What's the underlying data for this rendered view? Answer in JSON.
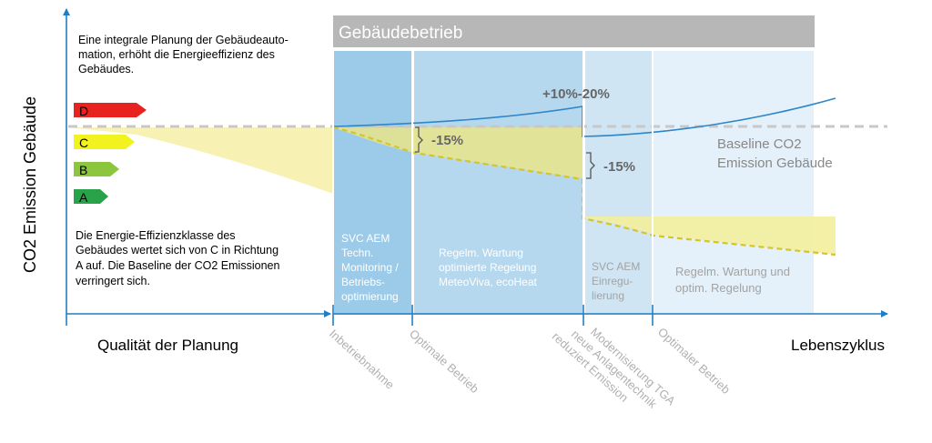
{
  "y_axis_label": "CO2 Emission Gebäude",
  "x_axis_left_label": "Qualität der Planung",
  "x_axis_right_label": "Lebenszyklus",
  "header_bar": "Gebäudebetrieb",
  "intro_text": [
    "Eine integrale Planung der Gebäudeauto-",
    "mation, erhöht die Energieeffizienz des",
    "Gebäudes."
  ],
  "class_text": [
    "Die Energie-Effizienzklasse des",
    "Gebäudes wertet sich von C in Richtung",
    "A auf. Die Baseline der CO2 Emissionen",
    "verringert sich."
  ],
  "energy_classes": [
    {
      "label": "D",
      "color": "#e8231f"
    },
    {
      "label": "C",
      "color": "#f2f21e"
    },
    {
      "label": "B",
      "color": "#8cc63f"
    },
    {
      "label": "A",
      "color": "#29a34a"
    }
  ],
  "phases": [
    {
      "lines": [
        "SVC AEM",
        "Techn.",
        "Monitoring /",
        "Betriebs-",
        "optimierung"
      ],
      "color": "#9ccbe9",
      "text_color": "#ffffff"
    },
    {
      "lines": [
        "Regelm. Wartung",
        "optimierte Regelung",
        "MeteoViva, ecoHeat"
      ],
      "color": "#b5d8ef",
      "text_color": "#ffffff"
    },
    {
      "lines": [
        "SVC AEM",
        "Einregu-",
        "lierung"
      ],
      "color": "#cfe5f4",
      "text_color": "#a3a3a3"
    },
    {
      "lines": [
        "Regelm. Wartung und",
        "optim. Regelung"
      ],
      "color": "#e4f1fa",
      "text_color": "#a3a3a3"
    }
  ],
  "milestones": [
    {
      "lines": [
        "Inbetriebnahme"
      ]
    },
    {
      "lines": [
        "Optimale Betrieb"
      ]
    },
    {
      "lines": [
        "Modernisierung TGA",
        "neue Anlagentechnik",
        "reduziert Emission"
      ]
    },
    {
      "lines": [
        "Optimaler Betrieb"
      ]
    }
  ],
  "annotations": {
    "increase": "+10%-20%",
    "reduction_1": "-15%",
    "reduction_2": "-15%",
    "baseline": [
      "Baseline CO2",
      "Emission Gebäude"
    ]
  },
  "colors": {
    "axis": "#1f7fc4",
    "emission_line": "#2e86c8",
    "baseline": "#c8c8c8",
    "reduction_fill": "#f4efa8",
    "reduction_line": "#d6c52a",
    "header": "#b7b7b7"
  }
}
